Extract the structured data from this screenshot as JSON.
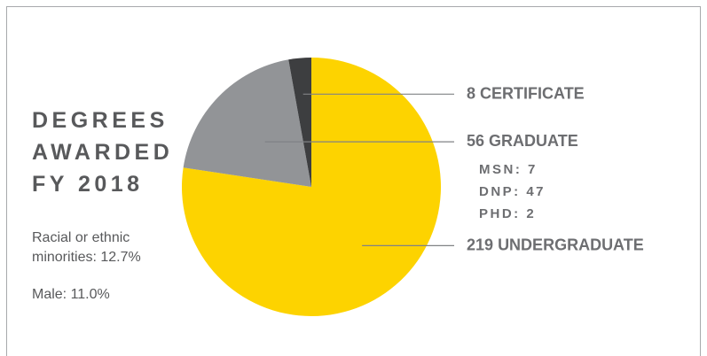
{
  "chart_data": {
    "type": "pie",
    "title": "DEGREES AWARDED FY 2018",
    "notes": [
      "Racial or ethnic minorities: 12.7%",
      "Male: 11.0%"
    ],
    "categories": [
      "UNDERGRADUATE",
      "GRADUATE",
      "CERTIFICATE"
    ],
    "values": [
      219,
      56,
      8
    ],
    "colors": [
      "#fdd300",
      "#929497",
      "#3d3e40"
    ],
    "graduate_breakdown": [
      {
        "label": "MSN:",
        "value": 7
      },
      {
        "label": "DNP:",
        "value": 47
      },
      {
        "label": "PHD:",
        "value": 2
      }
    ]
  }
}
